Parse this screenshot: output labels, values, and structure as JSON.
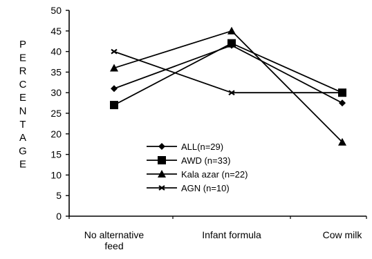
{
  "chart_data": {
    "type": "line",
    "categories": [
      "No alternative feed",
      "Infant formula",
      "Cow milk"
    ],
    "category_lines": [
      [
        "No alternative",
        "feed"
      ],
      [
        "Infant formula"
      ],
      [
        "Cow milk"
      ]
    ],
    "ylabel_letters": [
      "P",
      "E",
      "R",
      "C",
      "E",
      "N",
      "T",
      "A",
      "G",
      "E"
    ],
    "ylim": [
      0,
      50
    ],
    "yticks": [
      "0",
      "5",
      "10",
      "15",
      "20",
      "25",
      "30",
      "35",
      "40",
      "45",
      "50"
    ],
    "legend_position": "inside-bottom-center",
    "grid": false,
    "series": [
      {
        "name": "ALL(n=29)",
        "marker": "diamond",
        "values": [
          31,
          41.5,
          27.5
        ]
      },
      {
        "name": "AWD (n=33)",
        "marker": "square",
        "values": [
          27,
          42,
          30
        ]
      },
      {
        "name": "Kala azar (n=22)",
        "marker": "triangle",
        "values": [
          36,
          45,
          18
        ]
      },
      {
        "name": "AGN (n=10)",
        "marker": "x",
        "values": [
          40,
          30,
          30
        ]
      }
    ],
    "colors": {
      "line": "#000000",
      "background": "#ffffff"
    }
  }
}
